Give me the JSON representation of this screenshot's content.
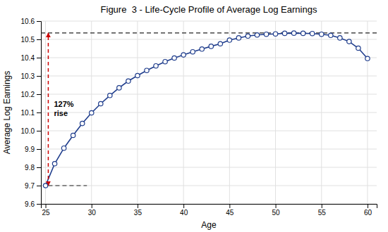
{
  "chart_data": {
    "type": "line",
    "title": "Figure  3 - Life-Cycle Profile of Average Log Earnings",
    "xlabel": "Age",
    "ylabel": "Average Log Earnings",
    "x": [
      25,
      26,
      27,
      28,
      29,
      30,
      31,
      32,
      33,
      34,
      35,
      36,
      37,
      38,
      39,
      40,
      41,
      42,
      43,
      44,
      45,
      46,
      47,
      48,
      49,
      50,
      51,
      52,
      53,
      54,
      55,
      56,
      57,
      58,
      59,
      60
    ],
    "values": [
      9.7,
      9.82,
      9.905,
      9.975,
      10.04,
      10.098,
      10.148,
      10.193,
      10.235,
      10.272,
      10.302,
      10.33,
      10.355,
      10.378,
      10.398,
      10.415,
      10.432,
      10.447,
      10.462,
      10.476,
      10.496,
      10.508,
      10.518,
      10.524,
      10.528,
      10.53,
      10.533,
      10.534,
      10.533,
      10.532,
      10.528,
      10.522,
      10.508,
      10.488,
      10.452,
      10.395
    ],
    "color": "#1f3d8c",
    "marker": "circle",
    "xlim": [
      24.5,
      61
    ],
    "ylim": [
      9.6,
      10.6
    ],
    "xticks": [
      25,
      30,
      35,
      40,
      45,
      50,
      55,
      60
    ],
    "yticks": [
      9.6,
      9.7,
      9.8,
      9.9,
      {
        "value": 10.0,
        "label": "10.0"
      },
      10.1,
      10.2,
      10.3,
      10.4,
      10.5,
      10.6
    ],
    "grid": true,
    "reference_lines": [
      {
        "y": 10.535,
        "color": "#222222",
        "line_style": "dashed"
      },
      {
        "y": 9.7,
        "x_from": 25.3,
        "x_to": 29.5,
        "color": "#222222",
        "line_style": "dashed"
      }
    ],
    "annotations": [
      {
        "text": "127%\nrise",
        "x": 25.3,
        "y_from": 9.7,
        "y_to": 10.535,
        "color": "#cc0000",
        "line_style": "dashed"
      }
    ]
  }
}
